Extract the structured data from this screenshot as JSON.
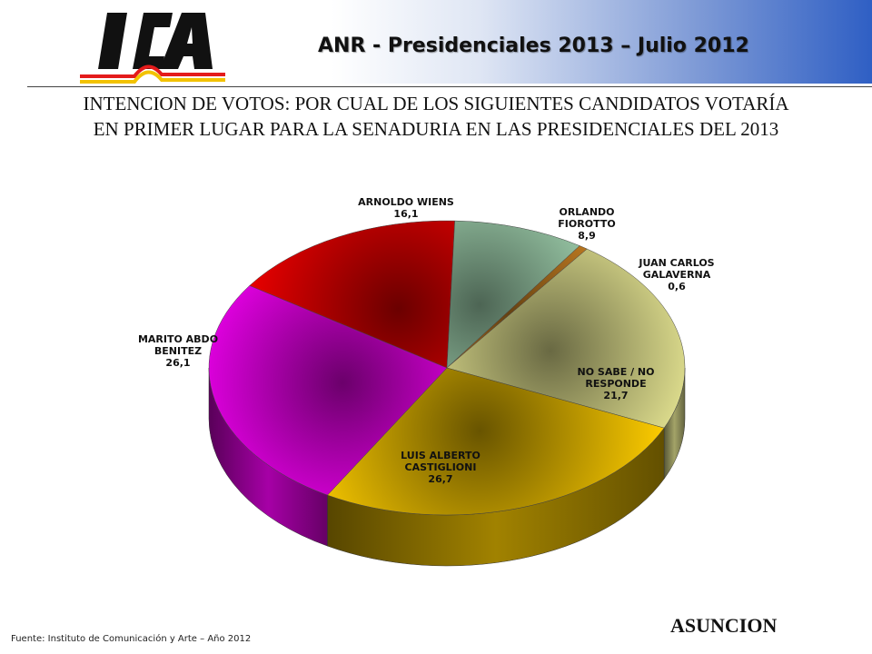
{
  "header": {
    "logo_text": "ICA",
    "title": "ANR - Presidenciales 2013 – Julio 2012"
  },
  "question": {
    "line1": "INTENCION DE VOTOS: POR CUAL DE LOS SIGUIENTES CANDIDATOS VOTARÍA",
    "line2": "EN PRIMER LUGAR PARA LA SENADURIA EN LAS PRESIDENCIALES DEL 2013"
  },
  "chart_data": {
    "type": "pie",
    "style": "3d-exploded-none",
    "slices": [
      {
        "label": "ARNOLDO WIENS",
        "value": 16.1,
        "value_text": "16,1",
        "color": "#ff0000"
      },
      {
        "label": "ORLANDO FIOROTTO",
        "value": 8.9,
        "value_text": "8,9",
        "color": "#b8f0c8"
      },
      {
        "label": "JUAN CARLOS GALAVERNA",
        "value": 0.6,
        "value_text": "0,6",
        "color": "#f39c2a"
      },
      {
        "label": "NO SABE / NO RESPONDE",
        "value": 21.7,
        "value_text": "21,7",
        "color": "#fbfaa0"
      },
      {
        "label": "LUIS ALBERTO CASTIGLIONI",
        "value": 26.7,
        "value_text": "26,7",
        "color": "#f8c800"
      },
      {
        "label": "MARITO ABDO BENITEZ",
        "value": 26.1,
        "value_text": "26,1",
        "color": "#ff00ff"
      }
    ]
  },
  "footer": {
    "source": "Fuente: Instituto de Comunicación y Arte – Año 2012",
    "location": "ASUNCION"
  }
}
